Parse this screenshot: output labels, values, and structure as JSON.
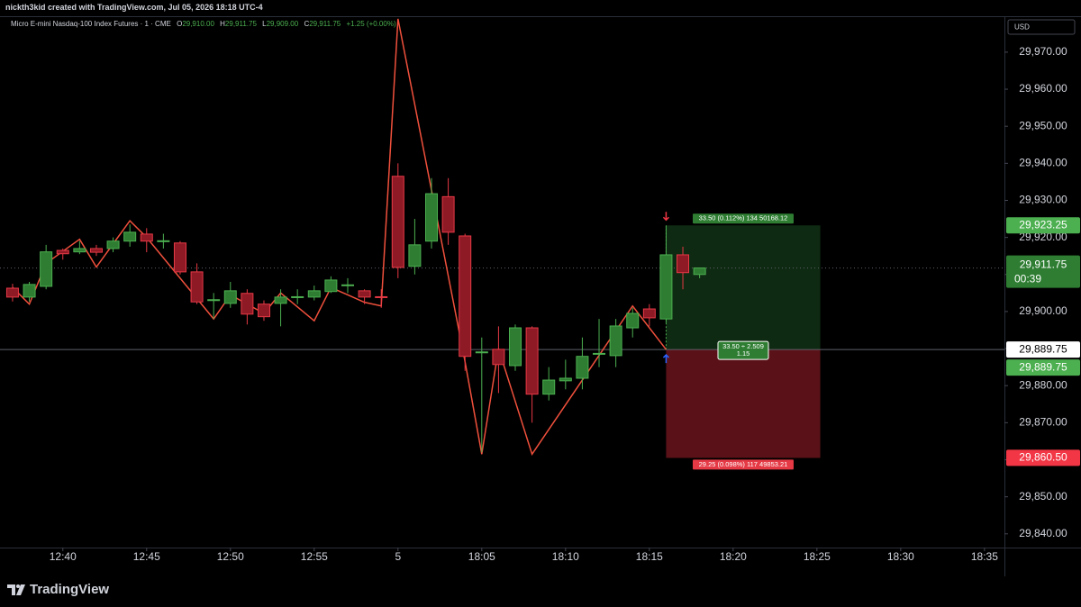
{
  "top_bar": {
    "text": "nickth3kid created with TradingView.com, Jul 05, 2026 18:18 UTC-4"
  },
  "footer": {
    "brand": "TradingView"
  },
  "chart_data": {
    "type": "candlestick",
    "legend_header": {
      "symbol": "Micro E-mini Nasdaq-100 Index Futures · 1 · CME",
      "items": [
        {
          "key": "O",
          "value": "29,910.00"
        },
        {
          "key": "H",
          "value": "29,911.75"
        },
        {
          "key": "L",
          "value": "29,909.00"
        },
        {
          "key": "C",
          "value": "29,911.75"
        }
      ],
      "change": "+1.25 (+0.00%)"
    },
    "currency": "USD",
    "x": [
      0,
      1,
      2,
      3,
      4,
      5,
      6,
      7,
      8,
      9,
      10,
      11,
      12,
      13,
      14,
      15,
      16,
      17,
      18,
      19,
      20,
      21,
      22,
      23,
      24,
      25,
      26,
      27,
      28,
      29,
      30,
      31,
      32,
      33,
      34,
      35,
      36,
      37,
      38,
      39,
      40,
      41
    ],
    "open": [
      29906.3,
      29903.9,
      29906.8,
      29916.5,
      29916.1,
      29917,
      29917,
      29919,
      29920.9,
      29919,
      29918.5,
      29910.7,
      29903,
      29902.2,
      29904.9,
      29902,
      29902.2,
      29903.9,
      29903.9,
      29905.4,
      29907,
      29905.6,
      29904,
      29936.5,
      29912.2,
      29919,
      29931,
      29920.4,
      29889,
      29889.8,
      29885.4,
      29895.6,
      29877.7,
      29881.3,
      29882,
      29888.6,
      29888.1,
      29895.6,
      29900.7,
      29898,
      29915.3,
      29910
    ],
    "high": [
      29907.5,
      29908,
      29918,
      29917,
      29919,
      29918,
      29920,
      29923.5,
      29922.5,
      29921,
      29919,
      29913,
      29905,
      29908,
      29906,
      29903,
      29906,
      29906,
      29907,
      29909.5,
      29909,
      29906,
      29906,
      29940,
      29925,
      29936,
      29936,
      29921,
      29893,
      29896,
      29896.5,
      29896,
      29885,
      29887,
      29893,
      29898,
      29898,
      29901,
      29902,
      29923,
      29917.5,
      29911.75
    ],
    "low": [
      29902.7,
      29902.7,
      29906,
      29914,
      29915.5,
      29915,
      29916,
      29917.5,
      29916,
      29917,
      29910,
      29902,
      29898,
      29901,
      29896.5,
      29897.5,
      29896,
      29902,
      29903,
      29905,
      29905,
      29902,
      29901,
      29909,
      29910,
      29917,
      29918,
      29884,
      29862,
      29878,
      29884,
      29870,
      29876,
      29879,
      29879,
      29885,
      29885,
      29893,
      29896,
      29897,
      29906,
      29909
    ],
    "close": [
      29903.9,
      29907.3,
      29916.1,
      29915.6,
      29917,
      29916,
      29919,
      29921.4,
      29919,
      29919.1,
      29910.7,
      29902.6,
      29903.2,
      29905.6,
      29899.3,
      29898.6,
      29903.9,
      29904,
      29905.6,
      29908.5,
      29907.2,
      29903.9,
      29903.8,
      29911.9,
      29918,
      29931.8,
      29921.4,
      29887.9,
      29889.1,
      29885.7,
      29895.6,
      29877.7,
      29881.5,
      29882,
      29887.9,
      29888.7,
      29896.1,
      29899.5,
      29898.3,
      29915.3,
      29910.5,
      29911.75
    ],
    "up_color": "#2e7d32",
    "up_border": "#4caf50",
    "down_color": "#8e1a26",
    "down_border": "#e53945",
    "xlim": [
      -0.75,
      59.19
    ],
    "xticks": [
      {
        "value": 3,
        "label": "12:40"
      },
      {
        "value": 8,
        "label": "12:45"
      },
      {
        "value": 13,
        "label": "12:50"
      },
      {
        "value": 18,
        "label": "12:55"
      },
      {
        "value": 23,
        "label": "5"
      },
      {
        "value": 28,
        "label": "18:05"
      },
      {
        "value": 33,
        "label": "18:10"
      },
      {
        "value": 38,
        "label": "18:15"
      },
      {
        "value": 43,
        "label": "18:20"
      },
      {
        "value": 48,
        "label": "18:25"
      },
      {
        "value": 53,
        "label": "18:30"
      },
      {
        "value": 58,
        "label": "18:35"
      }
    ],
    "ylim": [
      29836.3,
      29979.7
    ],
    "yticks": [
      {
        "value": 29840,
        "label": "29,840.00"
      },
      {
        "value": 29850,
        "label": "29,850.00"
      },
      {
        "value": 29860,
        "label": "29,860.00"
      },
      {
        "value": 29870,
        "label": "29,870.00"
      },
      {
        "value": 29880,
        "label": "29,880.00"
      },
      {
        "value": 29890,
        "label": "29,890.00"
      },
      {
        "value": 29900,
        "label": "29,900.00"
      },
      {
        "value": 29910,
        "label": "29,910.00"
      },
      {
        "value": 29920,
        "label": "29,920.00"
      },
      {
        "value": 29930,
        "label": "29,930.00"
      },
      {
        "value": 29940,
        "label": "29,940.00"
      },
      {
        "value": 29950,
        "label": "29,950.00"
      },
      {
        "value": 29960,
        "label": "29,960.00"
      },
      {
        "value": 29970,
        "label": "29,970.00"
      }
    ],
    "zigzag": {
      "color": "#f0503c",
      "x": [
        0,
        1,
        2,
        4,
        5,
        7,
        8,
        12,
        13,
        14,
        15,
        16,
        18,
        19,
        21,
        22,
        23,
        27,
        28,
        29,
        31,
        37,
        39
      ],
      "values": [
        29906.5,
        29902,
        29913,
        29919.5,
        29912,
        29924.5,
        29920,
        29898,
        29904.5,
        29902,
        29899.5,
        29905,
        29897.5,
        29906.5,
        29902.5,
        29901.5,
        29979,
        29886.5,
        29861.5,
        29890,
        29861.5,
        29901.5,
        29889.75
      ]
    },
    "last_price": {
      "value": 29911.75,
      "label": "29,911.75",
      "countdown": "00:39"
    },
    "position": {
      "x_start": 39,
      "x_end": 48.2,
      "entry": {
        "value": 29889.75,
        "label": "29,889.75"
      },
      "target": {
        "value": 29923.25,
        "label": "29,923.25"
      },
      "stop": {
        "value": 29860.5,
        "label": "29,860.50"
      },
      "target_label": "33.50 (0.112%) 134 50168.12",
      "entry_label": [
        "33.50 ÷ 2.509",
        "1.15"
      ],
      "stop_label": "29.25 (0.098%) 117 49853.21"
    }
  }
}
